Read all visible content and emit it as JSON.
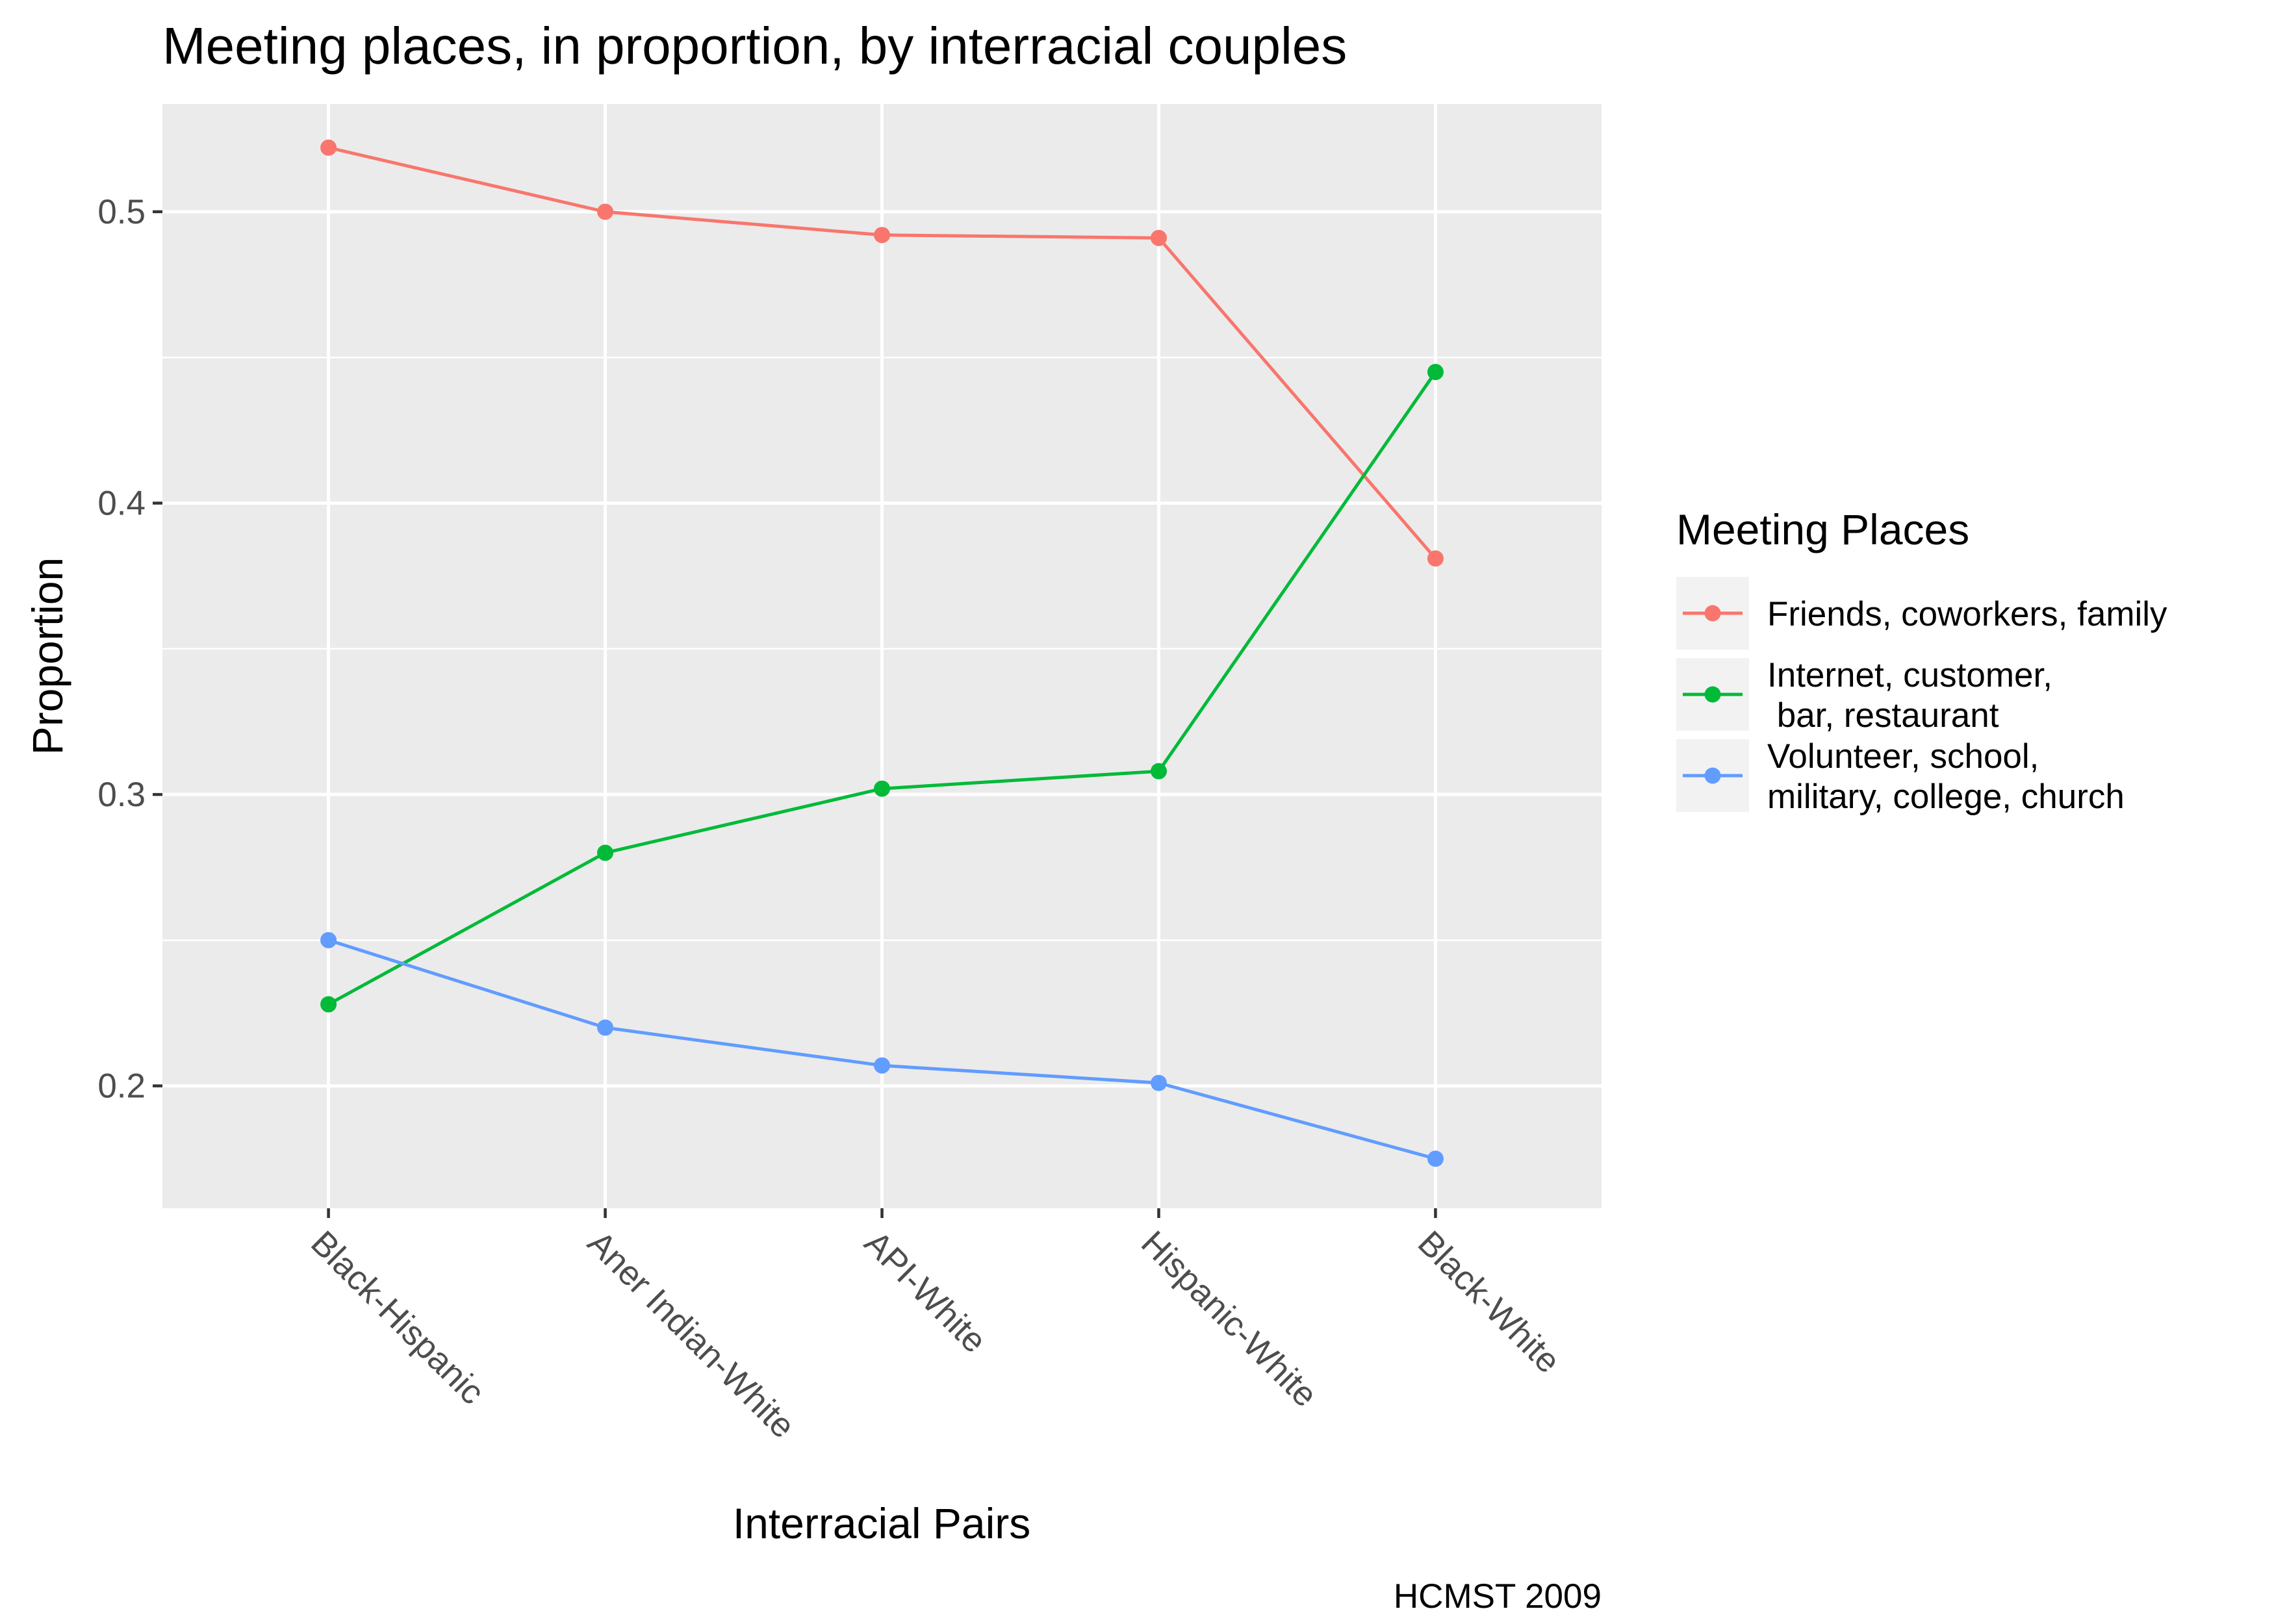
{
  "chart_data": {
    "type": "line",
    "title": "Meeting places, in proportion, by interracial couples",
    "xlabel": "Interracial Pairs",
    "ylabel": "Proportion",
    "caption": "HCMST 2009",
    "categories": [
      "Black-Hispanic",
      "Aner Indian-White",
      "API-White",
      "Hispanic-White",
      "Black-White"
    ],
    "yticks": [
      0.2,
      0.3,
      0.4,
      0.5
    ],
    "ylim": [
      0.158,
      0.537
    ],
    "grid": true,
    "legend_position": "right",
    "legend_title": "Meeting Places",
    "series": [
      {
        "name": "Friends, coworkers, family",
        "label_lines": [
          "Friends, coworkers, family"
        ],
        "color": "#F8766D",
        "values": [
          0.522,
          0.5,
          0.492,
          0.491,
          0.381
        ]
      },
      {
        "name": "Internet, customer,\n bar, restaurant",
        "label_lines": [
          "Internet, customer,",
          " bar, restaurant"
        ],
        "color": "#00BA38",
        "values": [
          0.228,
          0.28,
          0.302,
          0.308,
          0.445
        ]
      },
      {
        "name": "Volunteer, school,\nmilitary, college, church",
        "label_lines": [
          "Volunteer, school,",
          "military, college, church"
        ],
        "color": "#619CFF",
        "values": [
          0.25,
          0.22,
          0.207,
          0.201,
          0.175
        ]
      }
    ]
  }
}
